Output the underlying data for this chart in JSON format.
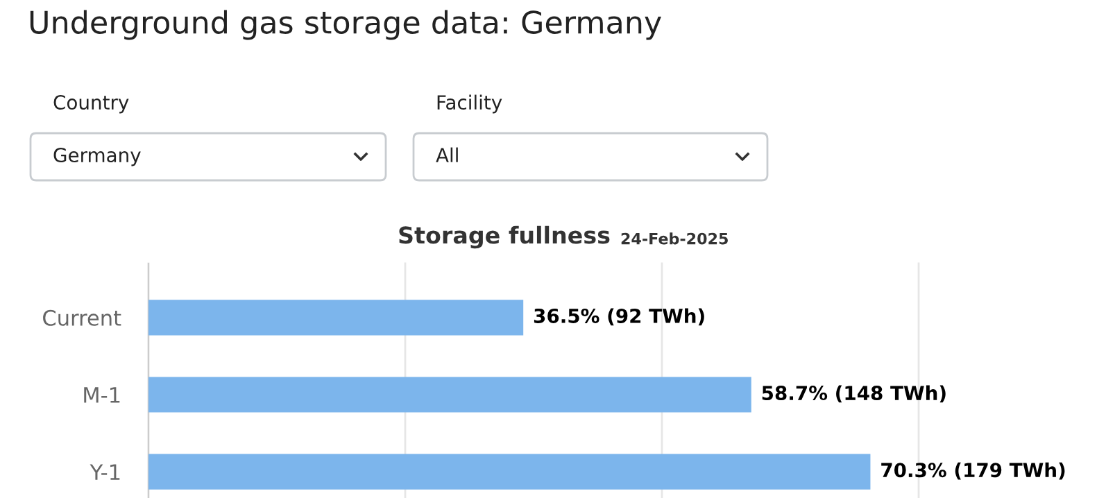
{
  "chart_data": [
    {
      "type": "other",
      "title": "Underground gas storage data: Germany",
      "annotations": [
        "Country",
        "Germany",
        "Facility",
        "All"
      ]
    },
    {
      "type": "bar",
      "orientation": "horizontal",
      "title": "Storage fullness",
      "subtitle": "24-Feb-2025",
      "categories": [
        "Current",
        "M-1",
        "Y-1"
      ],
      "values": [
        36.5,
        58.7,
        70.3
      ],
      "color": "#7cb5ec",
      "value_labels": [
        "36.5% (92 TWh)",
        "58.7% (148 TWh)",
        "70.3% (179 TWh)"
      ],
      "xlim": [
        0,
        75
      ],
      "xticks": [
        {
          "value": 0,
          "label": null
        },
        {
          "value": 25,
          "label": null
        },
        {
          "value": 50,
          "label": null
        },
        {
          "value": 75,
          "label": null
        }
      ],
      "tick_labels": "y",
      "grid": "x"
    }
  ]
}
